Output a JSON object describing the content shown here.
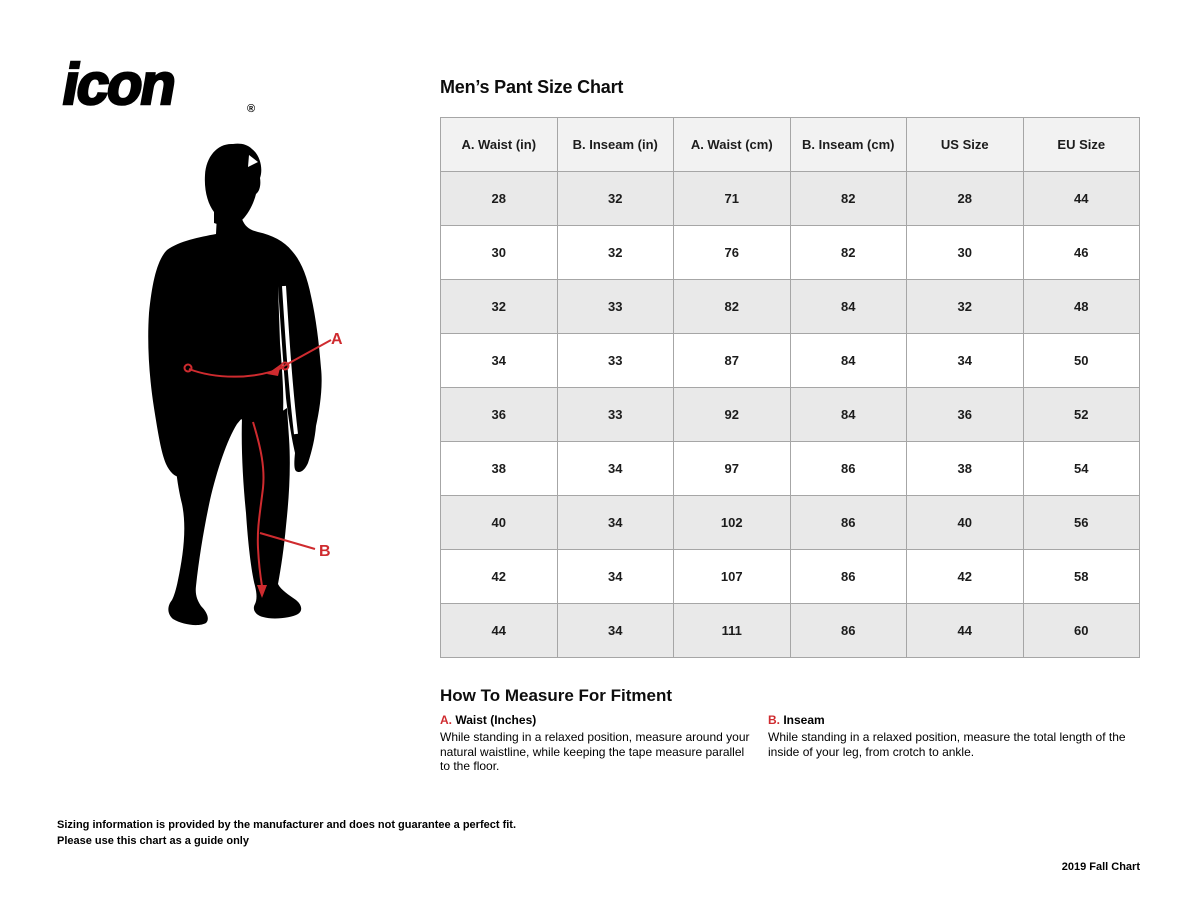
{
  "logo": {
    "text": "icon",
    "registered": "®"
  },
  "size_chart": {
    "title": "Men’s Pant Size Chart",
    "columns": [
      "A. Waist (in)",
      "B. Inseam (in)",
      "A. Waist (cm)",
      "B. Inseam (cm)",
      "US Size",
      "EU Size"
    ],
    "rows": [
      [
        "28",
        "32",
        "71",
        "82",
        "28",
        "44"
      ],
      [
        "30",
        "32",
        "76",
        "82",
        "30",
        "46"
      ],
      [
        "32",
        "33",
        "82",
        "84",
        "32",
        "48"
      ],
      [
        "34",
        "33",
        "87",
        "84",
        "34",
        "50"
      ],
      [
        "36",
        "33",
        "92",
        "84",
        "36",
        "52"
      ],
      [
        "38",
        "34",
        "97",
        "86",
        "38",
        "54"
      ],
      [
        "40",
        "34",
        "102",
        "86",
        "40",
        "56"
      ],
      [
        "42",
        "34",
        "107",
        "86",
        "42",
        "58"
      ],
      [
        "44",
        "34",
        "111",
        "86",
        "44",
        "60"
      ]
    ]
  },
  "figure": {
    "label_a": "A",
    "label_b": "B"
  },
  "how_to_measure": {
    "title": "How To Measure For Fitment",
    "sections": [
      {
        "prefix": "A.",
        "heading": " Waist (Inches)",
        "body": "While standing in a relaxed position, measure around your natural waistline, while keeping the tape measure parallel to the floor."
      },
      {
        "prefix": "B.",
        "heading": " Inseam",
        "body": "While standing in a relaxed position, measure the total length of the inside of your leg, from crotch to ankle."
      }
    ]
  },
  "footer": {
    "disclaimer_line1": "Sizing information is provided by the manufacturer and does not guarantee a perfect fit.",
    "disclaimer_line2": "Please use this chart as a guide only",
    "edition": "2019 Fall Chart"
  },
  "colors": {
    "accent_red": "#cf2b2f",
    "table_border": "#a6a6a6",
    "header_bg": "#f2f2f2",
    "row_alt_bg": "#e9e9e9",
    "silhouette": "#000000"
  }
}
